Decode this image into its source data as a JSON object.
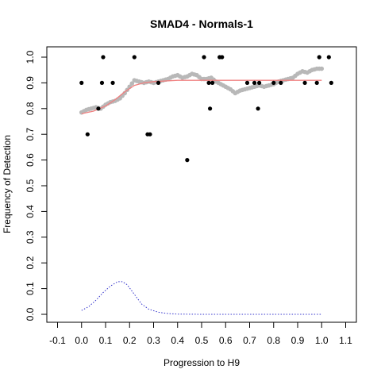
{
  "chart_data": {
    "type": "scatter",
    "title": "SMAD4 - Normals-1",
    "xlabel": "Progression to H9",
    "ylabel": "Frequency of Detection",
    "xlim": [
      -0.1,
      1.1
    ],
    "ylim": [
      0.0,
      1.0
    ],
    "x_ticks": [
      "-0.1",
      "0.0",
      "0.1",
      "0.2",
      "0.3",
      "0.4",
      "0.5",
      "0.6",
      "0.7",
      "0.8",
      "0.9",
      "1.0",
      "1.1"
    ],
    "y_ticks": [
      "0.0",
      "0.1",
      "0.2",
      "0.3",
      "0.4",
      "0.5",
      "0.6",
      "0.7",
      "0.8",
      "0.9",
      "1.0"
    ],
    "grid": false,
    "series": [
      {
        "kind": "points",
        "color": "#000000",
        "points": [
          [
            0.0,
            0.9
          ],
          [
            0.025,
            0.7
          ],
          [
            0.07,
            0.8
          ],
          [
            0.085,
            0.9
          ],
          [
            0.09,
            1.0
          ],
          [
            0.13,
            0.9
          ],
          [
            0.22,
            1.0
          ],
          [
            0.275,
            0.7
          ],
          [
            0.285,
            0.7
          ],
          [
            0.32,
            0.9
          ],
          [
            0.44,
            0.6
          ],
          [
            0.51,
            1.0
          ],
          [
            0.53,
            0.9
          ],
          [
            0.535,
            0.8
          ],
          [
            0.545,
            0.9
          ],
          [
            0.575,
            1.0
          ],
          [
            0.585,
            1.0
          ],
          [
            0.69,
            0.9
          ],
          [
            0.72,
            0.9
          ],
          [
            0.735,
            0.8
          ],
          [
            0.74,
            0.9
          ],
          [
            0.8,
            0.9
          ],
          [
            0.83,
            0.9
          ],
          [
            0.93,
            0.9
          ],
          [
            0.98,
            0.9
          ],
          [
            0.99,
            1.0
          ],
          [
            1.03,
            1.0
          ],
          [
            1.04,
            0.9
          ]
        ]
      },
      {
        "kind": "smoothed",
        "color": "#b8b8b8",
        "points": [
          [
            0.0,
            0.785
          ],
          [
            0.02,
            0.795
          ],
          [
            0.04,
            0.8
          ],
          [
            0.06,
            0.805
          ],
          [
            0.08,
            0.8
          ],
          [
            0.1,
            0.815
          ],
          [
            0.12,
            0.825
          ],
          [
            0.14,
            0.83
          ],
          [
            0.16,
            0.84
          ],
          [
            0.18,
            0.86
          ],
          [
            0.2,
            0.885
          ],
          [
            0.22,
            0.91
          ],
          [
            0.24,
            0.905
          ],
          [
            0.26,
            0.9
          ],
          [
            0.28,
            0.905
          ],
          [
            0.3,
            0.9
          ],
          [
            0.32,
            0.905
          ],
          [
            0.34,
            0.91
          ],
          [
            0.36,
            0.915
          ],
          [
            0.38,
            0.925
          ],
          [
            0.4,
            0.93
          ],
          [
            0.42,
            0.92
          ],
          [
            0.44,
            0.925
          ],
          [
            0.46,
            0.935
          ],
          [
            0.48,
            0.93
          ],
          [
            0.5,
            0.915
          ],
          [
            0.52,
            0.915
          ],
          [
            0.54,
            0.92
          ],
          [
            0.56,
            0.905
          ],
          [
            0.58,
            0.895
          ],
          [
            0.6,
            0.885
          ],
          [
            0.62,
            0.875
          ],
          [
            0.64,
            0.86
          ],
          [
            0.66,
            0.87
          ],
          [
            0.68,
            0.875
          ],
          [
            0.7,
            0.88
          ],
          [
            0.72,
            0.885
          ],
          [
            0.74,
            0.89
          ],
          [
            0.76,
            0.885
          ],
          [
            0.78,
            0.89
          ],
          [
            0.8,
            0.895
          ],
          [
            0.82,
            0.905
          ],
          [
            0.84,
            0.91
          ],
          [
            0.86,
            0.915
          ],
          [
            0.88,
            0.92
          ],
          [
            0.9,
            0.935
          ],
          [
            0.92,
            0.945
          ],
          [
            0.94,
            0.94
          ],
          [
            0.96,
            0.95
          ],
          [
            0.98,
            0.955
          ],
          [
            1.0,
            0.955
          ]
        ]
      },
      {
        "kind": "fit_line",
        "color": "#f08080",
        "points": [
          [
            0.0,
            0.78
          ],
          [
            0.05,
            0.79
          ],
          [
            0.1,
            0.81
          ],
          [
            0.14,
            0.835
          ],
          [
            0.18,
            0.865
          ],
          [
            0.22,
            0.89
          ],
          [
            0.26,
            0.9
          ],
          [
            0.3,
            0.905
          ],
          [
            0.4,
            0.91
          ],
          [
            0.5,
            0.91
          ],
          [
            0.6,
            0.91
          ],
          [
            0.7,
            0.91
          ],
          [
            0.8,
            0.91
          ],
          [
            0.9,
            0.91
          ],
          [
            1.0,
            0.91
          ]
        ]
      },
      {
        "kind": "density",
        "color": "#3333cc",
        "points": [
          [
            0.0,
            0.015
          ],
          [
            0.03,
            0.03
          ],
          [
            0.06,
            0.055
          ],
          [
            0.09,
            0.085
          ],
          [
            0.12,
            0.11
          ],
          [
            0.15,
            0.127
          ],
          [
            0.17,
            0.127
          ],
          [
            0.19,
            0.115
          ],
          [
            0.21,
            0.09
          ],
          [
            0.23,
            0.065
          ],
          [
            0.25,
            0.04
          ],
          [
            0.28,
            0.02
          ],
          [
            0.32,
            0.008
          ],
          [
            0.36,
            0.003
          ],
          [
            0.4,
            0.001
          ],
          [
            0.5,
            0.0
          ],
          [
            0.6,
            0.0
          ],
          [
            0.7,
            0.0
          ],
          [
            0.8,
            0.0
          ],
          [
            0.9,
            0.0
          ],
          [
            1.0,
            0.0
          ]
        ]
      }
    ]
  }
}
